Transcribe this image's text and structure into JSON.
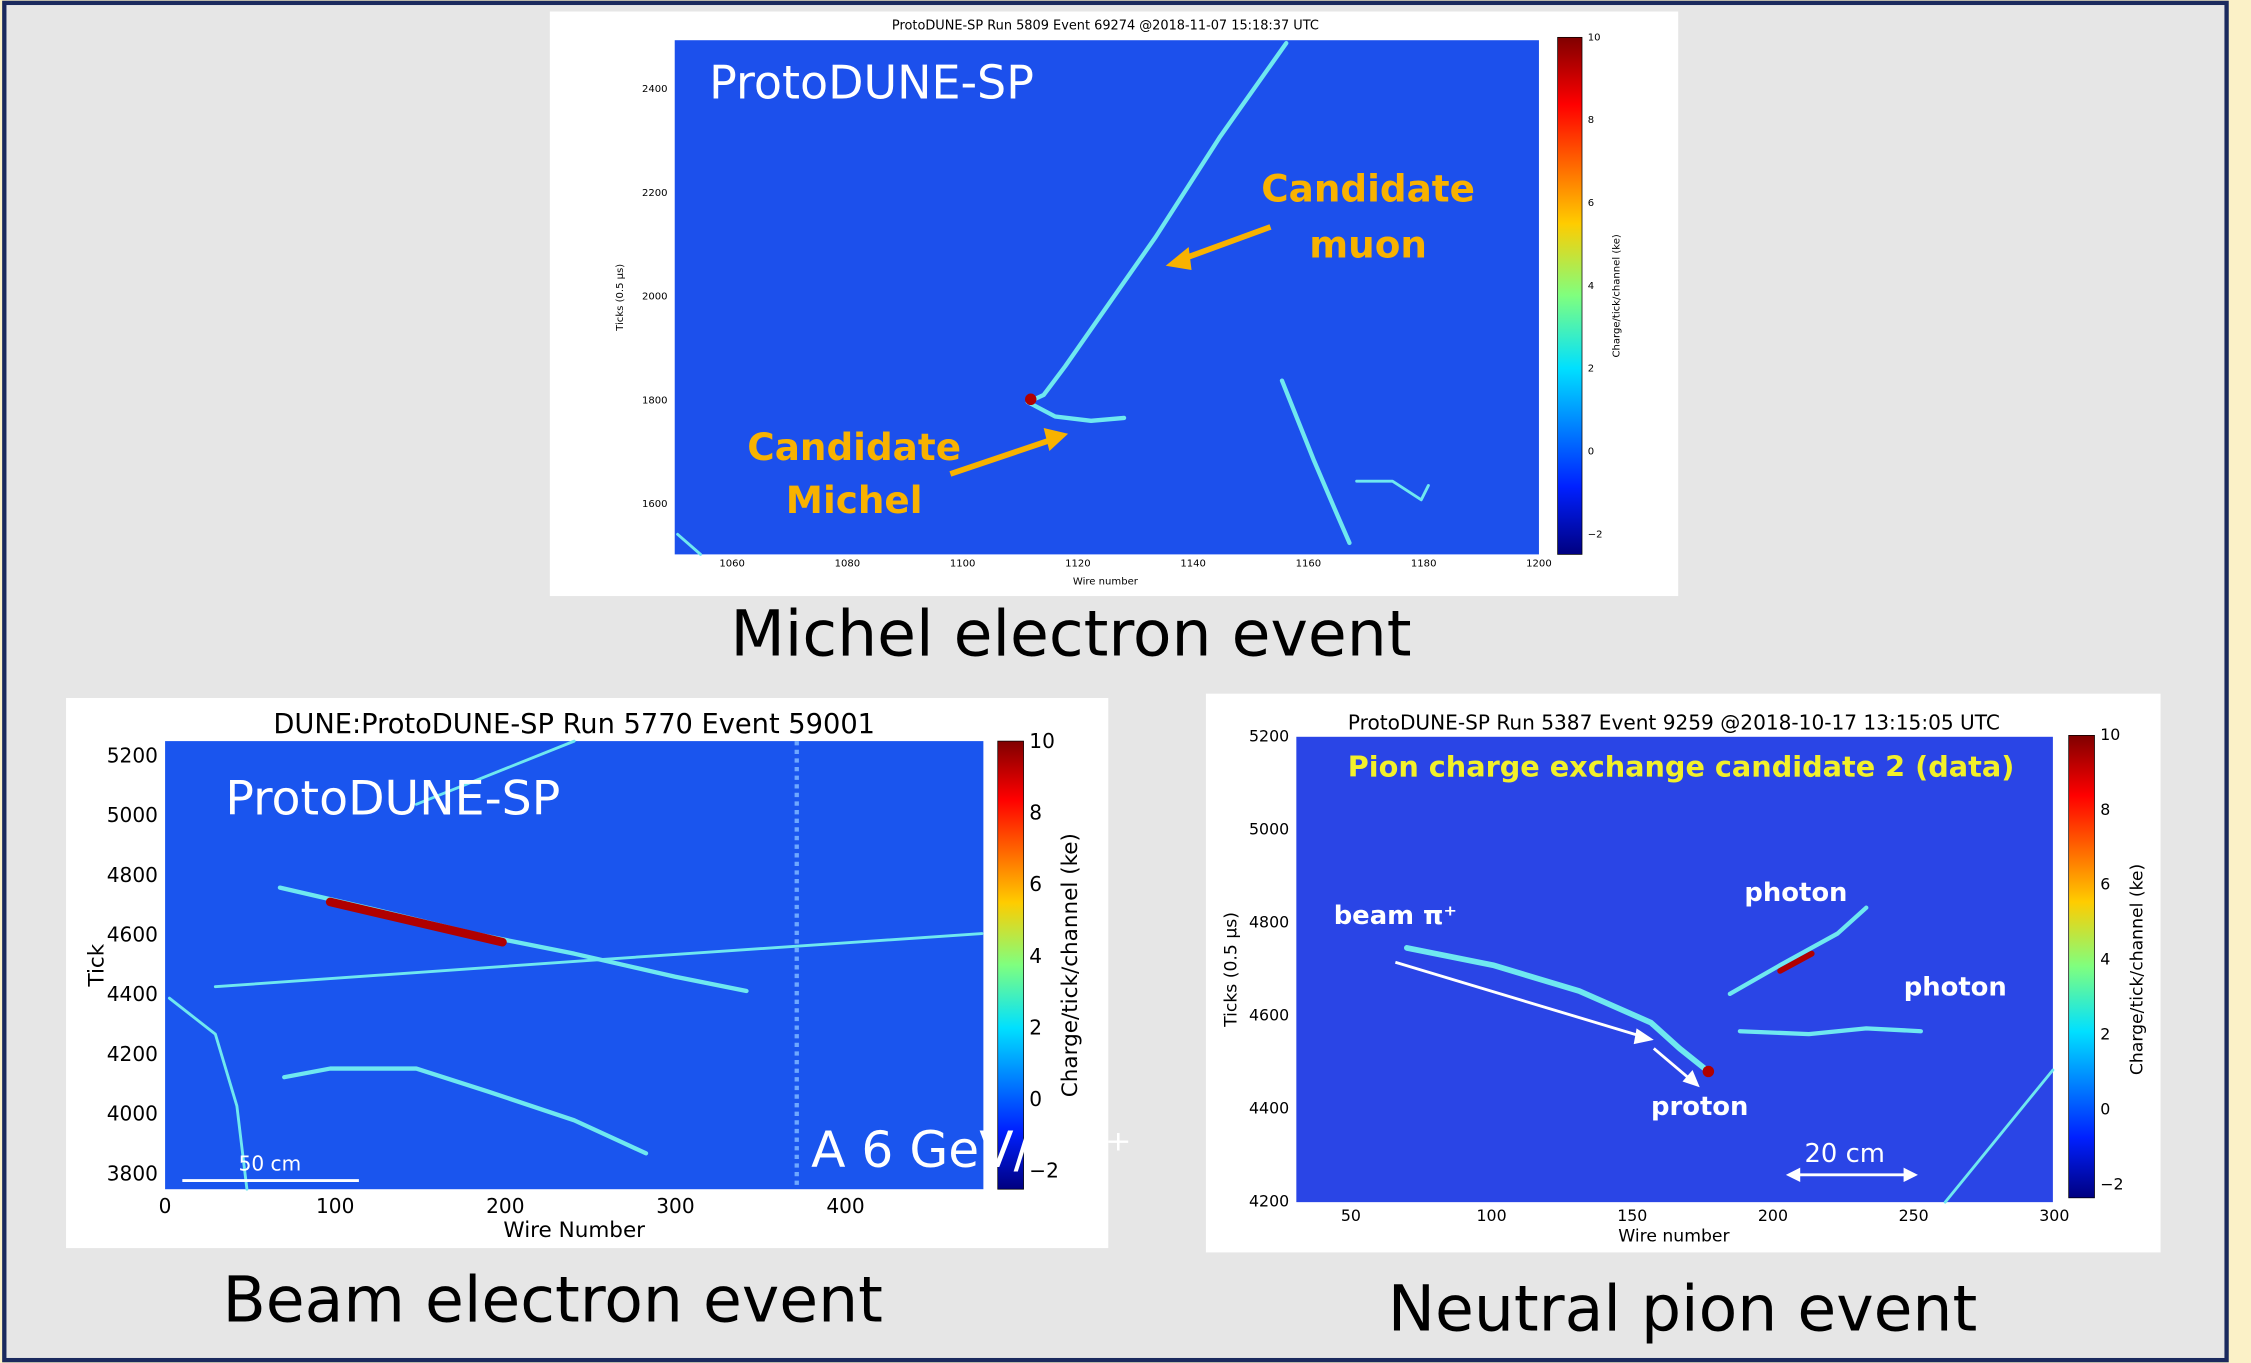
{
  "panels": [
    {
      "title": "ProtoDUNE-SP Run 5809 Event 69274 @2018-11-07 15:18:37 UTC",
      "watermark": "ProtoDUNE-SP",
      "x_label": "Wire number",
      "y_label": "Ticks (0.5 µs)",
      "colorbar_label": "Charge/tick/channel (ke)",
      "x_ticks": [
        "1060",
        "1080",
        "1100",
        "1120",
        "1140",
        "1160",
        "1180",
        "1200"
      ],
      "y_ticks": [
        "2400",
        "2200",
        "2000",
        "1800",
        "1600"
      ],
      "colorbar_ticks": [
        "10",
        "8",
        "6",
        "4",
        "2",
        "0",
        "−2"
      ],
      "annotations": [
        "Candidate",
        "muon",
        "Candidate",
        "Michel"
      ],
      "caption": "Michel electron event"
    },
    {
      "title": "DUNE:ProtoDUNE-SP Run 5770 Event 59001",
      "watermark": "ProtoDUNE-SP",
      "x_label": "Wire Number",
      "y_label": "Tick",
      "colorbar_label": "Charge/tick/channel (ke)",
      "x_ticks": [
        "0",
        "100",
        "200",
        "300",
        "400"
      ],
      "y_ticks": [
        "5200",
        "5000",
        "4800",
        "4600",
        "4400",
        "4200",
        "4000",
        "3800"
      ],
      "colorbar_ticks": [
        "10",
        "8",
        "6",
        "4",
        "2",
        "0",
        "−2"
      ],
      "annotations": [
        "A 6 GeV/c e⁺",
        "50 cm"
      ],
      "caption": "Beam electron event"
    },
    {
      "title": "ProtoDUNE-SP Run 5387 Event 9259 @2018-10-17 13:15:05 UTC",
      "x_label": "Wire number",
      "y_label": "Ticks (0.5 µs)",
      "colorbar_label": "Charge/tick/channel (ke)",
      "x_ticks": [
        "50",
        "100",
        "150",
        "200",
        "250",
        "300"
      ],
      "y_ticks": [
        "5200",
        "5000",
        "4800",
        "4600",
        "4400",
        "4200"
      ],
      "colorbar_ticks": [
        "10",
        "8",
        "6",
        "4",
        "2",
        "0",
        "−2"
      ],
      "annotations": [
        "Pion charge exchange candidate 2 (data)",
        "beam π⁺",
        "photon",
        "photon",
        "proton",
        "20 cm"
      ],
      "caption": "Neutral pion event"
    }
  ]
}
